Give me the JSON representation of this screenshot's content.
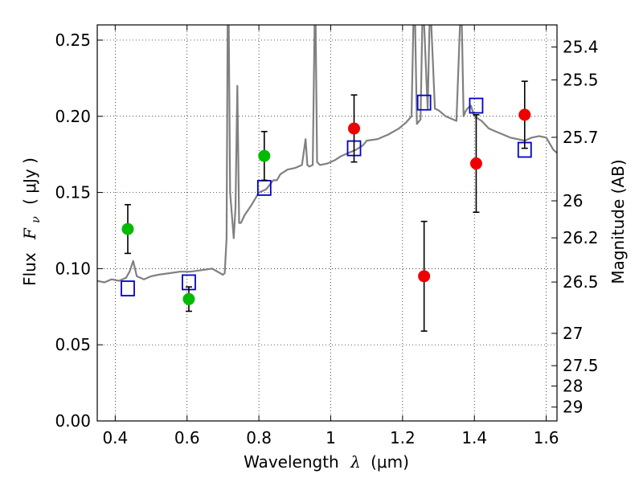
{
  "chart_data": {
    "type": "scatter",
    "xlabel_prefix": "Wavelength",
    "xlabel_symbol": "λ",
    "xlabel_unit": "(μm)",
    "ylabel_prefix": "Flux",
    "ylabel_symbol": "F",
    "ylabel_subscript": "ν",
    "ylabel_unit": "( μJy )",
    "y2label": "Magnitude (AB)",
    "xlim": [
      0.35,
      1.63
    ],
    "ylim": [
      0.0,
      0.26
    ],
    "grid": true,
    "x_ticks": [
      0.4,
      0.6,
      0.8,
      1.0,
      1.2,
      1.4,
      1.6
    ],
    "x_tick_labels": [
      "0.4",
      "0.6",
      "0.8",
      "1",
      "1.2",
      "1.4",
      "1.6"
    ],
    "y_ticks": [
      0.0,
      0.05,
      0.1,
      0.15,
      0.2,
      0.25
    ],
    "y_tick_labels": [
      "0.00",
      "0.05",
      "0.10",
      "0.15",
      "0.20",
      "0.25"
    ],
    "y2_ticks": [
      {
        "label": "25.4",
        "flux": 0.2455
      },
      {
        "label": "25.5",
        "flux": 0.2239
      },
      {
        "label": "25.7",
        "flux": 0.1862
      },
      {
        "label": "26",
        "flux": 0.1445
      },
      {
        "label": "26.2",
        "flux": 0.1202
      },
      {
        "label": "26.5",
        "flux": 0.0912
      },
      {
        "label": "27",
        "flux": 0.0575
      },
      {
        "label": "27.5",
        "flux": 0.0363
      },
      {
        "label": "28",
        "flux": 0.0229
      },
      {
        "label": "29",
        "flux": 0.0091
      }
    ],
    "colors": {
      "sed": "#808080",
      "model_box": "#0000cc",
      "green": "#00bb00",
      "red": "#ee0000",
      "errorbar": "#000000"
    },
    "sed_template": {
      "x": [
        0.35,
        0.37,
        0.39,
        0.41,
        0.43,
        0.44,
        0.45,
        0.46,
        0.48,
        0.5,
        0.52,
        0.55,
        0.58,
        0.61,
        0.64,
        0.67,
        0.7,
        0.705,
        0.71,
        0.713,
        0.716,
        0.72,
        0.73,
        0.735,
        0.74,
        0.745,
        0.75,
        0.76,
        0.78,
        0.8,
        0.82,
        0.84,
        0.85,
        0.86,
        0.88,
        0.9,
        0.92,
        0.93,
        0.935,
        0.94,
        0.95,
        0.955,
        0.958,
        0.962,
        0.97,
        0.99,
        1.01,
        1.03,
        1.05,
        1.07,
        1.09,
        1.1,
        1.13,
        1.16,
        1.19,
        1.21,
        1.225,
        1.23,
        1.235,
        1.24,
        1.25,
        1.255,
        1.26,
        1.27,
        1.275,
        1.28,
        1.29,
        1.3,
        1.32,
        1.35,
        1.36,
        1.365,
        1.37,
        1.375,
        1.38,
        1.39,
        1.4,
        1.42,
        1.44,
        1.46,
        1.48,
        1.5,
        1.52,
        1.54,
        1.56,
        1.58,
        1.6,
        1.62,
        1.63
      ],
      "y": [
        0.092,
        0.091,
        0.093,
        0.092,
        0.094,
        0.098,
        0.105,
        0.095,
        0.093,
        0.095,
        0.096,
        0.097,
        0.098,
        0.098,
        0.099,
        0.1,
        0.096,
        0.097,
        0.12,
        0.26,
        0.26,
        0.15,
        0.12,
        0.14,
        0.22,
        0.13,
        0.13,
        0.135,
        0.142,
        0.15,
        0.152,
        0.158,
        0.158,
        0.162,
        0.165,
        0.166,
        0.168,
        0.185,
        0.168,
        0.167,
        0.168,
        0.26,
        0.26,
        0.17,
        0.168,
        0.169,
        0.171,
        0.174,
        0.176,
        0.178,
        0.181,
        0.184,
        0.185,
        0.188,
        0.192,
        0.196,
        0.2,
        0.26,
        0.26,
        0.195,
        0.198,
        0.26,
        0.26,
        0.205,
        0.26,
        0.26,
        0.205,
        0.204,
        0.2,
        0.197,
        0.26,
        0.26,
        0.2,
        0.203,
        0.205,
        0.207,
        0.2,
        0.197,
        0.192,
        0.19,
        0.188,
        0.186,
        0.185,
        0.184,
        0.186,
        0.187,
        0.186,
        0.178,
        0.176
      ]
    },
    "model_points": {
      "x": [
        0.435,
        0.605,
        0.815,
        1.065,
        1.26,
        1.405,
        1.54
      ],
      "y": [
        0.087,
        0.091,
        0.153,
        0.179,
        0.209,
        0.207,
        0.178
      ]
    },
    "observed_points": [
      {
        "x": 0.435,
        "y": 0.126,
        "err": 0.016,
        "color": "green"
      },
      {
        "x": 0.605,
        "y": 0.08,
        "err": 0.008,
        "color": "green"
      },
      {
        "x": 0.815,
        "y": 0.174,
        "err": 0.016,
        "color": "green"
      },
      {
        "x": 1.065,
        "y": 0.192,
        "err": 0.022,
        "color": "red"
      },
      {
        "x": 1.26,
        "y": 0.095,
        "err": 0.036,
        "color": "red"
      },
      {
        "x": 1.405,
        "y": 0.169,
        "err": 0.032,
        "color": "red"
      },
      {
        "x": 1.54,
        "y": 0.201,
        "err": 0.022,
        "color": "red"
      }
    ]
  }
}
